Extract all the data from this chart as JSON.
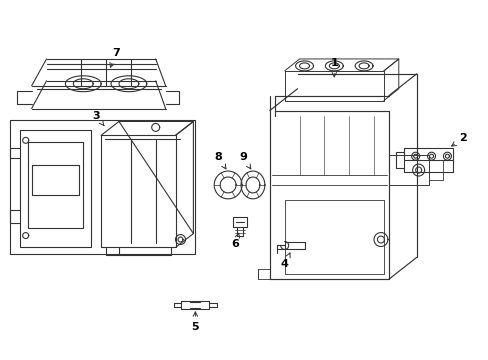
{
  "background_color": "#ffffff",
  "line_color": "#333333",
  "label_color": "#000000",
  "fig_width": 4.89,
  "fig_height": 3.6,
  "dpi": 100
}
